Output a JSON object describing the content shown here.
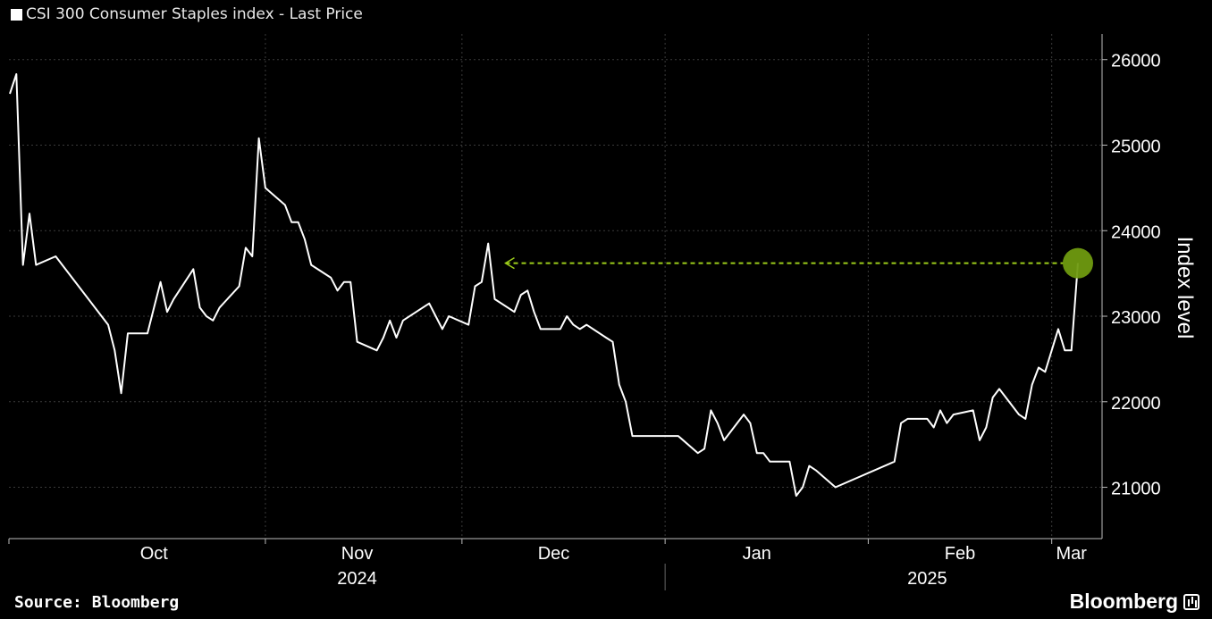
{
  "legend": {
    "label": "CSI 300 Consumer Staples index - Last Price",
    "color": "#ffffff"
  },
  "footer": {
    "source": "Source: Bloomberg",
    "brand": "Bloomberg"
  },
  "chart_data": {
    "type": "line",
    "title": "",
    "ylabel": "Index level",
    "xlabel": "",
    "ylim": [
      20400,
      26300
    ],
    "yticks": [
      21000,
      22000,
      23000,
      24000,
      25000,
      26000
    ],
    "grid": true,
    "axis_side": "right",
    "x_range": [
      "2024-09-23",
      "2025-03-05"
    ],
    "month_ticks": [
      {
        "label": "Oct",
        "date": "2024-10-15"
      },
      {
        "label": "Nov",
        "date": "2024-11-15"
      },
      {
        "label": "Dec",
        "date": "2024-12-15"
      },
      {
        "label": "Jan",
        "date": "2025-01-15"
      },
      {
        "label": "Feb",
        "date": "2025-02-15"
      },
      {
        "label": "Mar",
        "date": "2025-03-04"
      }
    ],
    "month_separators": [
      "2024-11-01",
      "2024-12-01",
      "2025-01-01",
      "2025-02-01",
      "2025-03-01"
    ],
    "year_ticks": [
      {
        "label": "2024",
        "date": "2024-11-15"
      },
      {
        "label": "2025",
        "date": "2025-02-10"
      }
    ],
    "year_separator": "2025-01-01",
    "series": [
      {
        "color": "#ffffff",
        "points": [
          [
            "2024-09-23",
            25600
          ],
          [
            "2024-09-24",
            25830
          ],
          [
            "2024-09-25",
            23600
          ],
          [
            "2024-09-26",
            24200
          ],
          [
            "2024-09-27",
            23600
          ],
          [
            "2024-09-30",
            23700
          ],
          [
            "2024-10-08",
            22900
          ],
          [
            "2024-10-09",
            22600
          ],
          [
            "2024-10-10",
            22100
          ],
          [
            "2024-10-11",
            22800
          ],
          [
            "2024-10-14",
            22800
          ],
          [
            "2024-10-15",
            23100
          ],
          [
            "2024-10-16",
            23400
          ],
          [
            "2024-10-17",
            23050
          ],
          [
            "2024-10-18",
            23200
          ],
          [
            "2024-10-21",
            23550
          ],
          [
            "2024-10-22",
            23100
          ],
          [
            "2024-10-23",
            23000
          ],
          [
            "2024-10-24",
            22950
          ],
          [
            "2024-10-25",
            23100
          ],
          [
            "2024-10-28",
            23350
          ],
          [
            "2024-10-29",
            23800
          ],
          [
            "2024-10-30",
            23700
          ],
          [
            "2024-10-31",
            25080
          ],
          [
            "2024-11-01",
            24500
          ],
          [
            "2024-11-04",
            24300
          ],
          [
            "2024-11-05",
            24100
          ],
          [
            "2024-11-06",
            24100
          ],
          [
            "2024-11-07",
            23900
          ],
          [
            "2024-11-08",
            23600
          ],
          [
            "2024-11-11",
            23450
          ],
          [
            "2024-11-12",
            23300
          ],
          [
            "2024-11-13",
            23400
          ],
          [
            "2024-11-14",
            23400
          ],
          [
            "2024-11-15",
            22700
          ],
          [
            "2024-11-18",
            22600
          ],
          [
            "2024-11-19",
            22750
          ],
          [
            "2024-11-20",
            22950
          ],
          [
            "2024-11-21",
            22750
          ],
          [
            "2024-11-22",
            22950
          ],
          [
            "2024-11-25",
            23100
          ],
          [
            "2024-11-26",
            23150
          ],
          [
            "2024-11-27",
            23000
          ],
          [
            "2024-11-28",
            22850
          ],
          [
            "2024-11-29",
            23000
          ],
          [
            "2024-12-02",
            22900
          ],
          [
            "2024-12-03",
            23350
          ],
          [
            "2024-12-04",
            23400
          ],
          [
            "2024-12-05",
            23850
          ],
          [
            "2024-12-06",
            23200
          ],
          [
            "2024-12-09",
            23050
          ],
          [
            "2024-12-10",
            23250
          ],
          [
            "2024-12-11",
            23300
          ],
          [
            "2024-12-12",
            23050
          ],
          [
            "2024-12-13",
            22850
          ],
          [
            "2024-12-16",
            22850
          ],
          [
            "2024-12-17",
            23000
          ],
          [
            "2024-12-18",
            22900
          ],
          [
            "2024-12-19",
            22850
          ],
          [
            "2024-12-20",
            22900
          ],
          [
            "2024-12-23",
            22750
          ],
          [
            "2024-12-24",
            22700
          ],
          [
            "2024-12-25",
            22200
          ],
          [
            "2024-12-26",
            22000
          ],
          [
            "2024-12-27",
            21600
          ],
          [
            "2024-12-30",
            21600
          ],
          [
            "2025-01-02",
            21600
          ],
          [
            "2025-01-03",
            21600
          ],
          [
            "2025-01-06",
            21400
          ],
          [
            "2025-01-07",
            21450
          ],
          [
            "2025-01-08",
            21900
          ],
          [
            "2025-01-09",
            21750
          ],
          [
            "2025-01-10",
            21550
          ],
          [
            "2025-01-13",
            21850
          ],
          [
            "2025-01-14",
            21750
          ],
          [
            "2025-01-15",
            21400
          ],
          [
            "2025-01-16",
            21400
          ],
          [
            "2025-01-17",
            21300
          ],
          [
            "2025-01-20",
            21300
          ],
          [
            "2025-01-21",
            20900
          ],
          [
            "2025-01-22",
            21000
          ],
          [
            "2025-01-23",
            21250
          ],
          [
            "2025-01-24",
            21200
          ],
          [
            "2025-01-27",
            21000
          ],
          [
            "2025-02-05",
            21300
          ],
          [
            "2025-02-06",
            21750
          ],
          [
            "2025-02-07",
            21800
          ],
          [
            "2025-02-10",
            21800
          ],
          [
            "2025-02-11",
            21700
          ],
          [
            "2025-02-12",
            21900
          ],
          [
            "2025-02-13",
            21750
          ],
          [
            "2025-02-14",
            21850
          ],
          [
            "2025-02-17",
            21900
          ],
          [
            "2025-02-18",
            21550
          ],
          [
            "2025-02-19",
            21700
          ],
          [
            "2025-02-20",
            22050
          ],
          [
            "2025-02-21",
            22150
          ],
          [
            "2025-02-24",
            21850
          ],
          [
            "2025-02-25",
            21800
          ],
          [
            "2025-02-26",
            22200
          ],
          [
            "2025-02-27",
            22400
          ],
          [
            "2025-02-28",
            22350
          ],
          [
            "2025-03-02",
            22850
          ],
          [
            "2025-03-03",
            22600
          ],
          [
            "2025-03-04",
            22600
          ],
          [
            "2025-03-05",
            23620
          ]
        ]
      }
    ],
    "annotation": {
      "type": "dashed-arrow",
      "from": "2025-03-05",
      "to": "2024-12-06",
      "value": 23620,
      "color": "#9ccc1a",
      "marker_color": "#6f9a10"
    }
  }
}
